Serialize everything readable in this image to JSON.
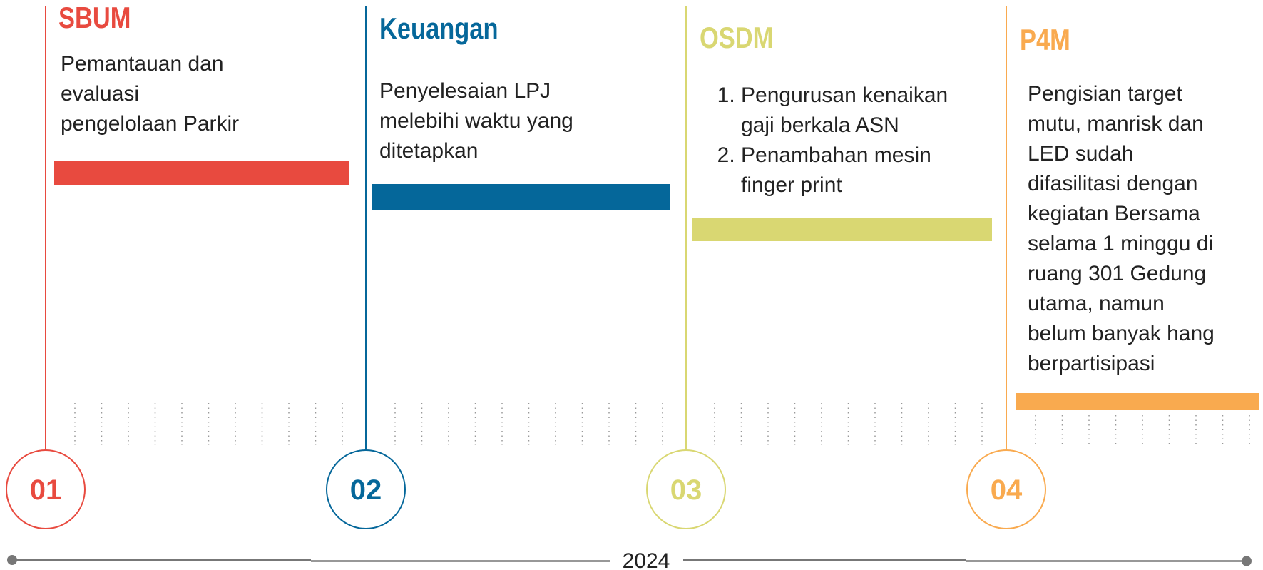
{
  "columns": [
    {
      "number": "01",
      "title": "SBUM",
      "lines": [
        "Pemantauan dan",
        "evaluasi",
        "pengelolaan Parkir"
      ]
    },
    {
      "number": "02",
      "title": "Keuangan",
      "lines": [
        "Penyelesaian LPJ",
        "melebihi waktu yang",
        "ditetapkan"
      ]
    },
    {
      "number": "03",
      "title": "OSDM",
      "items": [
        [
          "Pengurusan kenaikan",
          "gaji berkala ASN"
        ],
        [
          "Penambahan mesin",
          "finger print"
        ]
      ]
    },
    {
      "number": "04",
      "title": "P4M",
      "lines": [
        "Pengisian target",
        "mutu, manrisk dan",
        "LED sudah",
        "difasilitasi dengan",
        "kegiatan Bersama",
        "selama 1 minggu di",
        "ruang 301 Gedung",
        "utama, namun",
        "belum banyak hang",
        "berpartisipasi"
      ]
    }
  ],
  "timeline": {
    "label": "2024"
  }
}
